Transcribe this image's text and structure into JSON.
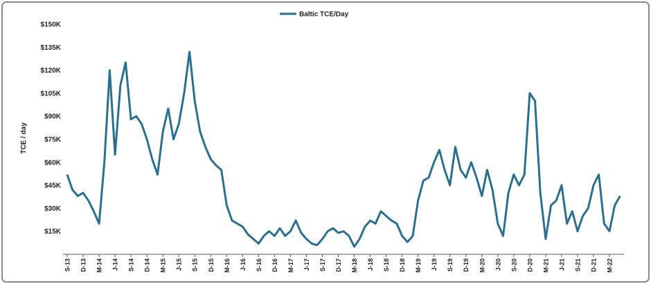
{
  "chart_data": {
    "type": "line",
    "legend": "top",
    "y_label": "TCE / day",
    "categories": [
      "S-13",
      null,
      null,
      "D-13",
      null,
      null,
      "M-14",
      null,
      null,
      "J-14",
      null,
      null,
      "S-14",
      null,
      null,
      "D-14",
      null,
      null,
      "M-15",
      null,
      null,
      "J-15",
      null,
      null,
      "S-15",
      null,
      null,
      "D-15",
      null,
      null,
      "M-16",
      null,
      null,
      "J-16",
      null,
      null,
      "S-16",
      null,
      null,
      "D-16",
      null,
      null,
      "M-17",
      null,
      null,
      "J-17",
      null,
      null,
      "S-17",
      null,
      null,
      "D-17",
      null,
      null,
      "M-18",
      null,
      null,
      "J-18",
      null,
      null,
      "S-18",
      null,
      null,
      "D-18",
      null,
      null,
      "M-19",
      null,
      null,
      "J-19",
      null,
      null,
      "S-19",
      null,
      null,
      "D-19",
      null,
      null,
      "M-20",
      null,
      null,
      "J-20",
      null,
      null,
      "S-20",
      null,
      null,
      "D-20",
      null,
      null,
      "M-21",
      null,
      null,
      "J-21",
      null,
      null,
      "S-21",
      null,
      null,
      "D-21",
      null,
      null,
      "M-22",
      null,
      null
    ],
    "series": [
      {
        "name": "Baltic TCE/Day",
        "color": "#2a6f8f",
        "values": [
          52000,
          42000,
          38000,
          40000,
          35000,
          28000,
          20000,
          60000,
          120000,
          65000,
          110000,
          125000,
          88000,
          90000,
          85000,
          75000,
          62000,
          52000,
          80000,
          95000,
          75000,
          85000,
          105000,
          132000,
          100000,
          80000,
          70000,
          62000,
          58000,
          55000,
          32000,
          22000,
          20000,
          18000,
          13000,
          10000,
          7000,
          12000,
          15000,
          12000,
          17000,
          12000,
          15000,
          22000,
          14000,
          10000,
          7000,
          6000,
          10000,
          15000,
          17000,
          14000,
          15000,
          12000,
          5000,
          10000,
          18000,
          22000,
          20000,
          28000,
          25000,
          22000,
          20000,
          12000,
          8000,
          12000,
          35000,
          48000,
          50000,
          60000,
          68000,
          55000,
          45000,
          70000,
          55000,
          50000,
          60000,
          50000,
          38000,
          55000,
          42000,
          20000,
          12000,
          40000,
          52000,
          45000,
          52000,
          105000,
          100000,
          40000,
          10000,
          32000,
          35000,
          45000,
          20000,
          28000,
          15000,
          25000,
          30000,
          45000,
          52000,
          20000,
          15000,
          32000,
          38000
        ]
      }
    ],
    "ylim": [
      0,
      150000
    ],
    "yticks": [
      {
        "value": 15000,
        "label": "$15K"
      },
      {
        "value": 30000,
        "label": "$30K"
      },
      {
        "value": 45000,
        "label": "$45K"
      },
      {
        "value": 60000,
        "label": "$60K"
      },
      {
        "value": 75000,
        "label": "$75K"
      },
      {
        "value": 90000,
        "label": "$90K"
      },
      {
        "value": 105000,
        "label": "$105K"
      },
      {
        "value": 120000,
        "label": "$120K"
      },
      {
        "value": 135000,
        "label": "$135K"
      },
      {
        "value": 150000,
        "label": "$150K"
      }
    ]
  }
}
